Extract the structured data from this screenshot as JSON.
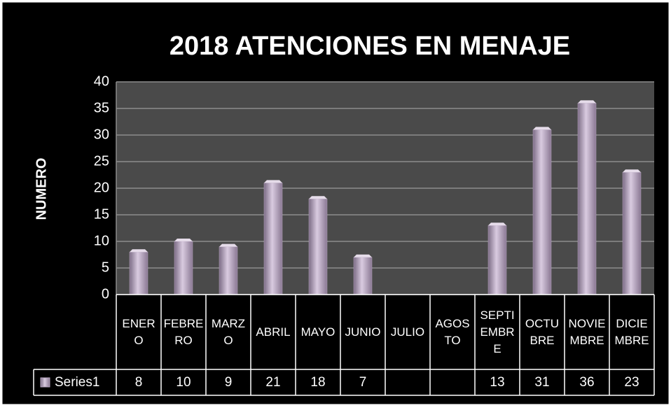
{
  "chart_data": {
    "type": "bar",
    "title": "2018 ATENCIONES EN  MENAJE",
    "y_label": "NUMERO",
    "categories": [
      "ENERO",
      "FEBRERO",
      "MARZO",
      "ABRIL",
      "MAYO",
      "JUNIO",
      "JULIO",
      "AGOSTO",
      "SEPTIEMBRE",
      "OCTUBRE",
      "NOVIEMBRE",
      "DICIEMBRE"
    ],
    "series": [
      {
        "name": "Series1",
        "color": "#b8a6c2",
        "values": [
          8,
          10,
          9,
          21,
          18,
          7,
          null,
          null,
          13,
          31,
          36,
          23
        ]
      }
    ],
    "ylim": [
      0,
      40
    ],
    "yticks": [
      0,
      5,
      10,
      15,
      20,
      25,
      30,
      35,
      40
    ],
    "grid": true
  }
}
